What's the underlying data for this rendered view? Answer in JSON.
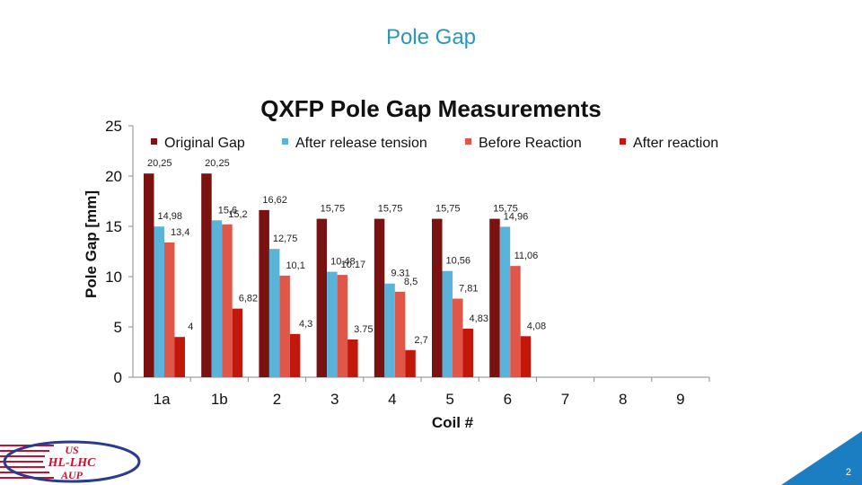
{
  "slide": {
    "title": "Pole Gap",
    "page_number": "2"
  },
  "logo": {
    "line1": "US",
    "line2": "HL-LHC",
    "line3": "AUP"
  },
  "chart_data": {
    "type": "bar",
    "title": "QXFP Pole Gap Measurements",
    "xlabel": "Coil #",
    "ylabel": "Pole Gap [mm]",
    "ylim": [
      0,
      25
    ],
    "yticks": [
      "0",
      "5",
      "10",
      "15",
      "20",
      "25"
    ],
    "categories": [
      "1a",
      "1b",
      "2",
      "3",
      "4",
      "5",
      "6",
      "7",
      "8",
      "9"
    ],
    "legend_position": "top",
    "series": [
      {
        "name": "Original Gap",
        "color": "#7b1212",
        "values": [
          20.25,
          20.25,
          16.62,
          15.75,
          15.75,
          15.75,
          15.75,
          null,
          null,
          null
        ],
        "labels": [
          "20,25",
          "20,25",
          "16,62",
          "15,75",
          "15,75",
          "15,75",
          "15,75",
          "",
          "",
          ""
        ]
      },
      {
        "name": "After release tension",
        "color": "#5ab4d9",
        "values": [
          14.98,
          15.6,
          12.75,
          10.48,
          9.31,
          10.56,
          14.96,
          null,
          null,
          null
        ],
        "labels": [
          "14,98",
          "15,6",
          "12,75",
          "10.48",
          "9.31",
          "10,56",
          "14,96",
          "",
          "",
          ""
        ]
      },
      {
        "name": "Before Reaction",
        "color": "#e0574a",
        "values": [
          13.4,
          15.2,
          10.1,
          10.17,
          8.5,
          7.81,
          11.06,
          null,
          null,
          null
        ],
        "labels": [
          "13,4",
          "15,2",
          "10,1",
          "10.17",
          "8,5",
          "7,81",
          "11,06",
          "",
          "",
          ""
        ]
      },
      {
        "name": "After reaction",
        "color": "#c4170c",
        "values": [
          4,
          6.82,
          4.3,
          3.75,
          2.7,
          4.83,
          4.08,
          null,
          null,
          null
        ],
        "labels": [
          "4",
          "6,82",
          "4,3",
          "3.75",
          "2,7",
          "4,83",
          "4,08",
          "",
          "",
          ""
        ]
      }
    ]
  }
}
